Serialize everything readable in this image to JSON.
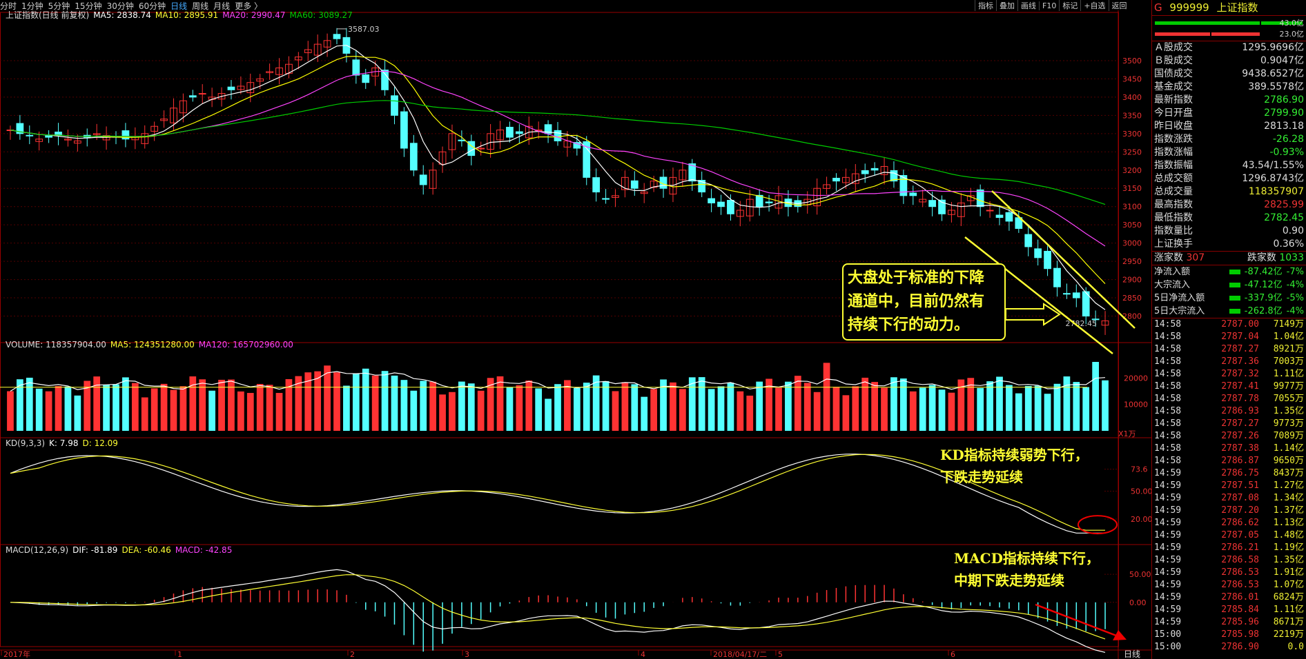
{
  "toolbar": {
    "periods": [
      "分时",
      "1分钟",
      "5分钟",
      "15分钟",
      "30分钟",
      "60分钟",
      "日线",
      "周线",
      "月线",
      "更多 〉"
    ],
    "active_period": "日线",
    "right_tools": [
      "指标",
      "叠加",
      "画线",
      "F10",
      "标记",
      "+自选",
      "返回"
    ]
  },
  "price_panel": {
    "title": "上证指数(日线 前复权)",
    "ma5": "MA5: 2838.74",
    "ma10": "MA10: 2895.91",
    "ma20": "MA20: 2990.47",
    "ma60": "MA60: 3089.27",
    "high_label": "3587.03",
    "low_label": "2782.45"
  },
  "volume_panel": {
    "title": "VOLUME: 118357904.00",
    "ma5": "MA5: 124351280.00",
    "ma120": "MA120: 165702960.00",
    "unit": "X1万",
    "ticks": [
      "20000",
      "10000"
    ]
  },
  "kd_panel": {
    "title": "KD(9,3,3)",
    "k": "K: 7.98",
    "d": "D: 12.09",
    "ticks": [
      "73.6",
      "50.00",
      "20.00"
    ]
  },
  "macd_panel": {
    "title": "MACD(12,26,9)",
    "dif": "DIF: -81.89",
    "dea": "DEA: -60.46",
    "macd": "MACD: -42.85",
    "ticks": [
      "50.00",
      "0.00"
    ]
  },
  "x_axis": {
    "labels": [
      "2017年",
      "1",
      "2",
      "3",
      "4",
      "2018/04/17/二",
      "5",
      "6"
    ],
    "period_label": "日线"
  },
  "annotations": {
    "box_lines": [
      "大盘处于标准的下降",
      "通道中，目前仍然有",
      "持续下行的动力。"
    ],
    "kd_lines": [
      "KD指标持续弱势下行，",
      "下跌走势延续"
    ],
    "macd_lines": [
      "MACD指标持续下行，",
      "中期下跌走势延续"
    ]
  },
  "quote_panel": {
    "code": "999999",
    "name": "上证指数",
    "bar_labels": [
      "43.0亿",
      "23.0亿"
    ],
    "rows": [
      {
        "k": "Ａ股成交",
        "v": "1295.9696亿",
        "c": "#ddd"
      },
      {
        "k": "Ｂ股成交",
        "v": "0.9047亿",
        "c": "#ddd"
      },
      {
        "k": "国债成交",
        "v": "9438.6527亿",
        "c": "#ddd"
      },
      {
        "k": "基金成交",
        "v": "389.5578亿",
        "c": "#ddd"
      },
      {
        "k": "最新指数",
        "v": "2786.90",
        "c": "#3e3"
      },
      {
        "k": "今日开盘",
        "v": "2799.90",
        "c": "#3e3"
      },
      {
        "k": "昨日收盘",
        "v": "2813.18",
        "c": "#ddd"
      },
      {
        "k": "指数涨跌",
        "v": "-26.28",
        "c": "#3e3"
      },
      {
        "k": "指数涨幅",
        "v": "-0.93%",
        "c": "#3e3"
      },
      {
        "k": "指数振幅",
        "v": "43.54/1.55%",
        "c": "#ddd"
      },
      {
        "k": "总成交额",
        "v": "1296.8743亿",
        "c": "#ddd"
      },
      {
        "k": "总成交量",
        "v": "118357907",
        "c": "#ee3"
      },
      {
        "k": "最高指数",
        "v": "2825.99",
        "c": "#e33"
      },
      {
        "k": "最低指数",
        "v": "2782.45",
        "c": "#3e3"
      },
      {
        "k": "指数量比",
        "v": "0.90",
        "c": "#ddd"
      },
      {
        "k": "上证换手",
        "v": "0.36%",
        "c": "#ddd"
      }
    ],
    "up_label": "涨家数",
    "up_count": "307",
    "down_label": "跌家数",
    "down_count": "1033",
    "flows": [
      {
        "k": "净流入额",
        "v": "-87.42亿",
        "p": "-7%"
      },
      {
        "k": "大宗流入",
        "v": "-47.12亿",
        "p": "-4%"
      },
      {
        "k": "5日净流入额",
        "v": "-337.9亿",
        "p": "-5%"
      },
      {
        "k": "5日大宗流入",
        "v": "-262.8亿",
        "p": "-4%"
      }
    ]
  },
  "ticks": [
    [
      "14:58",
      "2787.00",
      "7149万"
    ],
    [
      "14:58",
      "2787.04",
      "1.04亿"
    ],
    [
      "14:58",
      "2787.27",
      "8921万"
    ],
    [
      "14:58",
      "2787.36",
      "7003万"
    ],
    [
      "14:58",
      "2787.32",
      "1.11亿"
    ],
    [
      "14:58",
      "2787.41",
      "9977万"
    ],
    [
      "14:58",
      "2787.78",
      "7055万"
    ],
    [
      "14:58",
      "2786.93",
      "1.35亿"
    ],
    [
      "14:58",
      "2787.27",
      "9773万"
    ],
    [
      "14:58",
      "2787.26",
      "7089万"
    ],
    [
      "14:58",
      "2787.38",
      "1.14亿"
    ],
    [
      "14:58",
      "2786.87",
      "9650万"
    ],
    [
      "14:59",
      "2786.75",
      "8437万"
    ],
    [
      "14:59",
      "2787.51",
      "1.27亿"
    ],
    [
      "14:59",
      "2787.08",
      "1.34亿"
    ],
    [
      "14:59",
      "2787.20",
      "1.37亿"
    ],
    [
      "14:59",
      "2786.62",
      "1.13亿"
    ],
    [
      "14:59",
      "2787.05",
      "1.48亿"
    ],
    [
      "14:59",
      "2786.21",
      "1.19亿"
    ],
    [
      "14:59",
      "2786.58",
      "1.35亿"
    ],
    [
      "14:59",
      "2786.53",
      "1.91亿"
    ],
    [
      "14:59",
      "2786.53",
      "1.07亿"
    ],
    [
      "14:59",
      "2786.01",
      "6824万"
    ],
    [
      "14:59",
      "2785.84",
      "1.11亿"
    ],
    [
      "14:59",
      "2785.96",
      "8671万"
    ],
    [
      "15:00",
      "2785.98",
      "2219万"
    ],
    [
      "15:00",
      "2786.90",
      "0.0"
    ]
  ],
  "colors": {
    "up": "#ff3333",
    "down": "#54ffff",
    "ma5": "#ffffff",
    "ma10": "#ffff00",
    "ma20": "#ff44ff",
    "ma60": "#00cc00",
    "annotation": "#ffff33"
  },
  "chart_data": {
    "type": "candlestick",
    "title": "上证指数(日线 前复权)",
    "ylim": [
      2750,
      3600
    ],
    "yticks": [
      2800,
      2850,
      2900,
      2950,
      3000,
      3050,
      3100,
      3150,
      3200,
      3250,
      3300,
      3350,
      3400,
      3450,
      3500
    ],
    "series": [
      {
        "name": "MA5",
        "values": [
          2838.74
        ],
        "note": "last value"
      },
      {
        "name": "MA10",
        "values": [
          2895.91
        ]
      },
      {
        "name": "MA20",
        "values": [
          2990.47
        ]
      },
      {
        "name": "MA60",
        "values": [
          3089.27
        ]
      }
    ],
    "close_path": [
      3310,
      3300,
      3295,
      3285,
      3290,
      3295,
      3285,
      3280,
      3290,
      3300,
      3295,
      3290,
      3285,
      3290,
      3300,
      3320,
      3340,
      3370,
      3390,
      3400,
      3410,
      3400,
      3410,
      3420,
      3430,
      3440,
      3450,
      3470,
      3480,
      3490,
      3510,
      3530,
      3545,
      3555,
      3560,
      3520,
      3460,
      3440,
      3480,
      3420,
      3350,
      3260,
      3200,
      3160,
      3200,
      3250,
      3300,
      3280,
      3240,
      3260,
      3300,
      3310,
      3290,
      3300,
      3320,
      3310,
      3300,
      3280,
      3280,
      3260,
      3180,
      3140,
      3120,
      3130,
      3180,
      3150,
      3140,
      3170,
      3150,
      3180,
      3200,
      3170,
      3140,
      3110,
      3100,
      3080,
      3090,
      3120,
      3100,
      3110,
      3130,
      3100,
      3100,
      3120,
      3150,
      3160,
      3170,
      3180,
      3190,
      3190,
      3200,
      3210,
      3170,
      3130,
      3130,
      3120,
      3100,
      3080,
      3090,
      3110,
      3130,
      3100,
      3090,
      3070,
      3060,
      3040,
      2990,
      2960,
      2930,
      2880,
      2860,
      2850,
      2800,
      2790,
      2787
    ]
  }
}
